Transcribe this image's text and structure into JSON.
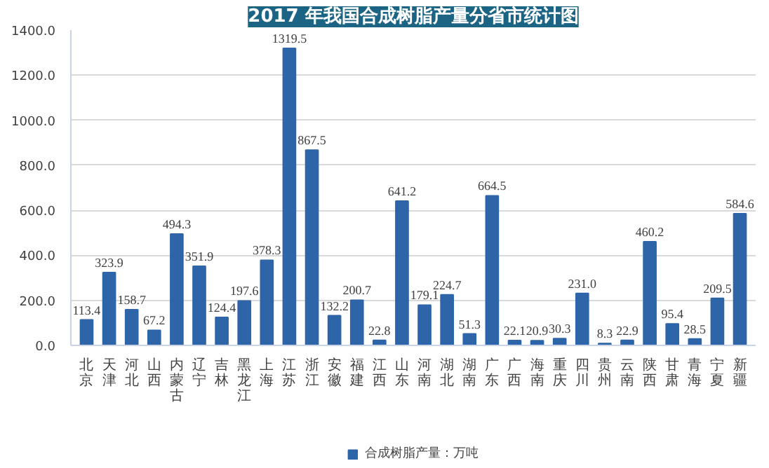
{
  "chart_data": {
    "type": "bar",
    "title": "2017 年我国合成树脂产量分省市统计图",
    "categories": [
      "北京",
      "天津",
      "河北",
      "山西",
      "内蒙古",
      "辽宁",
      "吉林",
      "黑龙江",
      "上海",
      "江苏",
      "浙江",
      "安徽",
      "福建",
      "江西",
      "山东",
      "河南",
      "湖北",
      "湖南",
      "广东",
      "广西",
      "海南",
      "重庆",
      "四川",
      "贵州",
      "云南",
      "陕西",
      "甘肃",
      "青海",
      "宁夏",
      "新疆"
    ],
    "series": [
      {
        "name": "合成树脂产量：万吨",
        "color": "#2e64a8",
        "values": [
          113.4,
          323.9,
          158.7,
          67.2,
          494.3,
          351.9,
          124.4,
          197.6,
          378.3,
          1319.5,
          867.5,
          132.2,
          200.7,
          22.8,
          641.2,
          179.1,
          224.7,
          51.3,
          664.5,
          22.1,
          20.9,
          30.3,
          231.0,
          8.3,
          22.9,
          460.2,
          95.4,
          28.5,
          209.5,
          584.6
        ],
        "value_labels": [
          "113.4",
          "323.9",
          "158.7",
          "67.2",
          "494.3",
          "351.9",
          "124.4",
          "197.6",
          "378.3",
          "1319.5",
          "867.5",
          "132.2",
          "200.7",
          "22.8",
          "641.2",
          "179.1",
          "224.7",
          "51.3",
          "664.5",
          "22.1",
          "20.9",
          "30.3",
          "231.0",
          "8.3",
          "22.9",
          "460.2",
          "95.4",
          "28.5",
          "209.5",
          "584.6"
        ]
      }
    ],
    "ylim": [
      0,
      1400
    ],
    "yticks": [
      {
        "value": 0,
        "label": "0.0"
      },
      {
        "value": 200,
        "label": "200.0"
      },
      {
        "value": 400,
        "label": "400.0"
      },
      {
        "value": 600,
        "label": "600.0"
      },
      {
        "value": 800,
        "label": "800.0"
      },
      {
        "value": 1000,
        "label": "1000.0"
      },
      {
        "value": 1200,
        "label": "1200.0"
      },
      {
        "value": 1400,
        "label": "1400.0"
      }
    ],
    "grid": "y",
    "legend": "bottom"
  }
}
